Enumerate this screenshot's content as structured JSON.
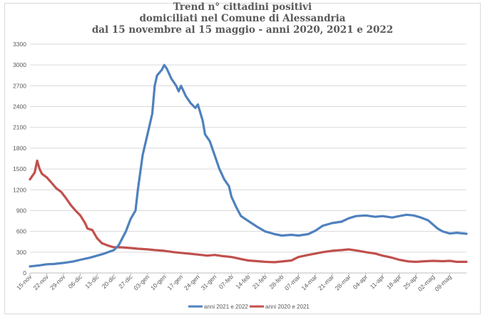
{
  "chart_data": {
    "type": "line",
    "title_lines": [
      "Trend n° cittadini positivi",
      "domiciliati nel Comune di Alessandria",
      "dal 15 novembre al 15 maggio - anni 2020, 2021 e 2022"
    ],
    "ylim": [
      0,
      3300
    ],
    "yticks": [
      0,
      300,
      600,
      900,
      1200,
      1500,
      1800,
      2100,
      2400,
      2700,
      3000,
      3300
    ],
    "grid": true,
    "legend_position": "bottom",
    "x_labels": [
      "15-nov",
      "22-nov",
      "29-nov",
      "06-dic",
      "13-dic",
      "20-dic",
      "27-dic",
      "03-gen",
      "10-gen",
      "17-gen",
      "24-gen",
      "31-gen",
      "07-feb",
      "14-feb",
      "21-feb",
      "28-feb",
      "07-mar",
      "14-mar",
      "21-mar",
      "28-mar",
      "04-apr",
      "11-apr",
      "18-apr",
      "25-apr",
      "02-mag",
      "09-mag"
    ],
    "x_label_day_index": [
      0,
      7,
      14,
      21,
      28,
      35,
      42,
      49,
      56,
      63,
      70,
      77,
      84,
      91,
      98,
      105,
      112,
      119,
      126,
      133,
      140,
      147,
      154,
      161,
      168,
      175
    ],
    "x_days_total": 182,
    "series": [
      {
        "name": "anni 2021 e 2022",
        "color": "#4f81bd",
        "points": [
          [
            0,
            95
          ],
          [
            4,
            110
          ],
          [
            7,
            125
          ],
          [
            10,
            130
          ],
          [
            14,
            145
          ],
          [
            18,
            165
          ],
          [
            21,
            190
          ],
          [
            25,
            220
          ],
          [
            28,
            250
          ],
          [
            31,
            280
          ],
          [
            35,
            330
          ],
          [
            37,
            400
          ],
          [
            40,
            600
          ],
          [
            42,
            780
          ],
          [
            44,
            900
          ],
          [
            45,
            1200
          ],
          [
            47,
            1700
          ],
          [
            49,
            2000
          ],
          [
            51,
            2300
          ],
          [
            52,
            2700
          ],
          [
            53,
            2850
          ],
          [
            55,
            2930
          ],
          [
            56,
            3000
          ],
          [
            57,
            2950
          ],
          [
            59,
            2800
          ],
          [
            61,
            2700
          ],
          [
            62,
            2620
          ],
          [
            63,
            2700
          ],
          [
            65,
            2550
          ],
          [
            67,
            2450
          ],
          [
            69,
            2380
          ],
          [
            70,
            2430
          ],
          [
            72,
            2200
          ],
          [
            73,
            2000
          ],
          [
            75,
            1900
          ],
          [
            77,
            1700
          ],
          [
            79,
            1500
          ],
          [
            81,
            1350
          ],
          [
            83,
            1250
          ],
          [
            84,
            1100
          ],
          [
            86,
            950
          ],
          [
            88,
            820
          ],
          [
            91,
            750
          ],
          [
            95,
            660
          ],
          [
            98,
            600
          ],
          [
            102,
            560
          ],
          [
            105,
            540
          ],
          [
            109,
            550
          ],
          [
            112,
            540
          ],
          [
            116,
            560
          ],
          [
            119,
            610
          ],
          [
            122,
            680
          ],
          [
            126,
            720
          ],
          [
            130,
            740
          ],
          [
            133,
            790
          ],
          [
            136,
            820
          ],
          [
            140,
            830
          ],
          [
            144,
            810
          ],
          [
            147,
            820
          ],
          [
            151,
            800
          ],
          [
            154,
            820
          ],
          [
            157,
            840
          ],
          [
            160,
            830
          ],
          [
            163,
            800
          ],
          [
            166,
            760
          ],
          [
            168,
            700
          ],
          [
            170,
            640
          ],
          [
            172,
            600
          ],
          [
            175,
            570
          ],
          [
            178,
            580
          ],
          [
            182,
            565
          ]
        ]
      },
      {
        "name": "anni 2020 e 2021",
        "color": "#c0504d",
        "points": [
          [
            0,
            1350
          ],
          [
            2,
            1450
          ],
          [
            3,
            1620
          ],
          [
            4,
            1500
          ],
          [
            5,
            1430
          ],
          [
            7,
            1380
          ],
          [
            9,
            1300
          ],
          [
            11,
            1220
          ],
          [
            13,
            1170
          ],
          [
            15,
            1080
          ],
          [
            17,
            980
          ],
          [
            19,
            900
          ],
          [
            21,
            830
          ],
          [
            23,
            720
          ],
          [
            24,
            640
          ],
          [
            26,
            620
          ],
          [
            28,
            500
          ],
          [
            30,
            430
          ],
          [
            33,
            390
          ],
          [
            35,
            370
          ],
          [
            38,
            370
          ],
          [
            42,
            360
          ],
          [
            45,
            350
          ],
          [
            49,
            340
          ],
          [
            52,
            330
          ],
          [
            56,
            320
          ],
          [
            60,
            300
          ],
          [
            63,
            290
          ],
          [
            66,
            280
          ],
          [
            70,
            265
          ],
          [
            74,
            250
          ],
          [
            77,
            260
          ],
          [
            80,
            245
          ],
          [
            84,
            230
          ],
          [
            88,
            200
          ],
          [
            91,
            180
          ],
          [
            95,
            170
          ],
          [
            98,
            160
          ],
          [
            102,
            155
          ],
          [
            105,
            165
          ],
          [
            109,
            180
          ],
          [
            112,
            230
          ],
          [
            116,
            260
          ],
          [
            119,
            280
          ],
          [
            122,
            300
          ],
          [
            126,
            320
          ],
          [
            130,
            330
          ],
          [
            133,
            340
          ],
          [
            137,
            320
          ],
          [
            140,
            300
          ],
          [
            144,
            280
          ],
          [
            147,
            250
          ],
          [
            151,
            220
          ],
          [
            154,
            190
          ],
          [
            158,
            165
          ],
          [
            161,
            160
          ],
          [
            165,
            170
          ],
          [
            168,
            175
          ],
          [
            172,
            170
          ],
          [
            175,
            175
          ],
          [
            178,
            160
          ],
          [
            182,
            160
          ]
        ]
      }
    ]
  }
}
